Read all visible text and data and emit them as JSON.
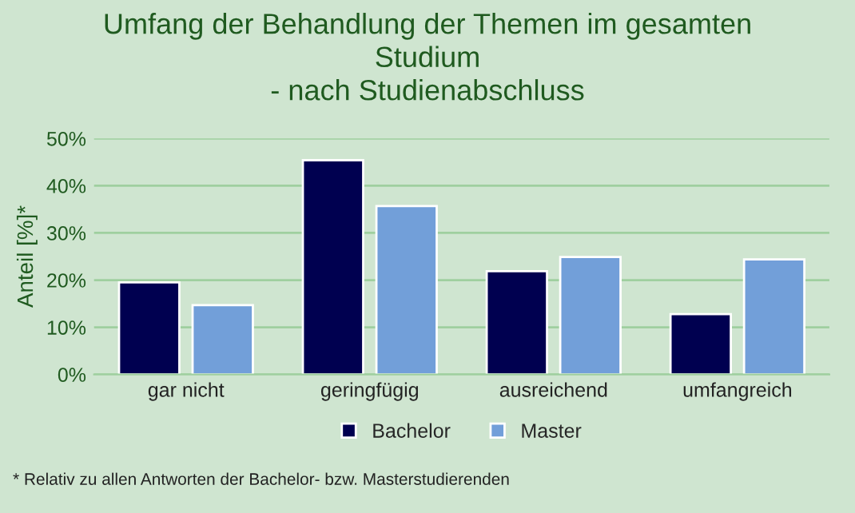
{
  "chart_data": {
    "type": "bar",
    "title": "Umfang der Behandlung der Themen im gesamten\nStudium\n- nach Studienabschluss",
    "ylabel": "Anteil [%]*",
    "categories": [
      "gar nicht",
      "geringfügig",
      "ausreichend",
      "umfangreich"
    ],
    "series": [
      {
        "name": "Bachelor",
        "color": "#000050",
        "values": [
          19.5,
          45.4,
          21.9,
          12.8
        ]
      },
      {
        "name": "Master",
        "color": "#729fd9",
        "values": [
          14.7,
          35.7,
          24.9,
          24.4
        ]
      }
    ],
    "ylim": [
      0,
      50
    ],
    "yticks": [
      {
        "value": 0,
        "label": "0%"
      },
      {
        "value": 10,
        "label": "10%"
      },
      {
        "value": 20,
        "label": "20%"
      },
      {
        "value": 30,
        "label": "30%"
      },
      {
        "value": 40,
        "label": "40%"
      },
      {
        "value": 50,
        "label": "50%"
      }
    ],
    "grid": "y",
    "legend": "bottom",
    "annotations": [
      "* Relativ zu allen Antworten der Bachelor- bzw. Masterstudierenden"
    ]
  }
}
